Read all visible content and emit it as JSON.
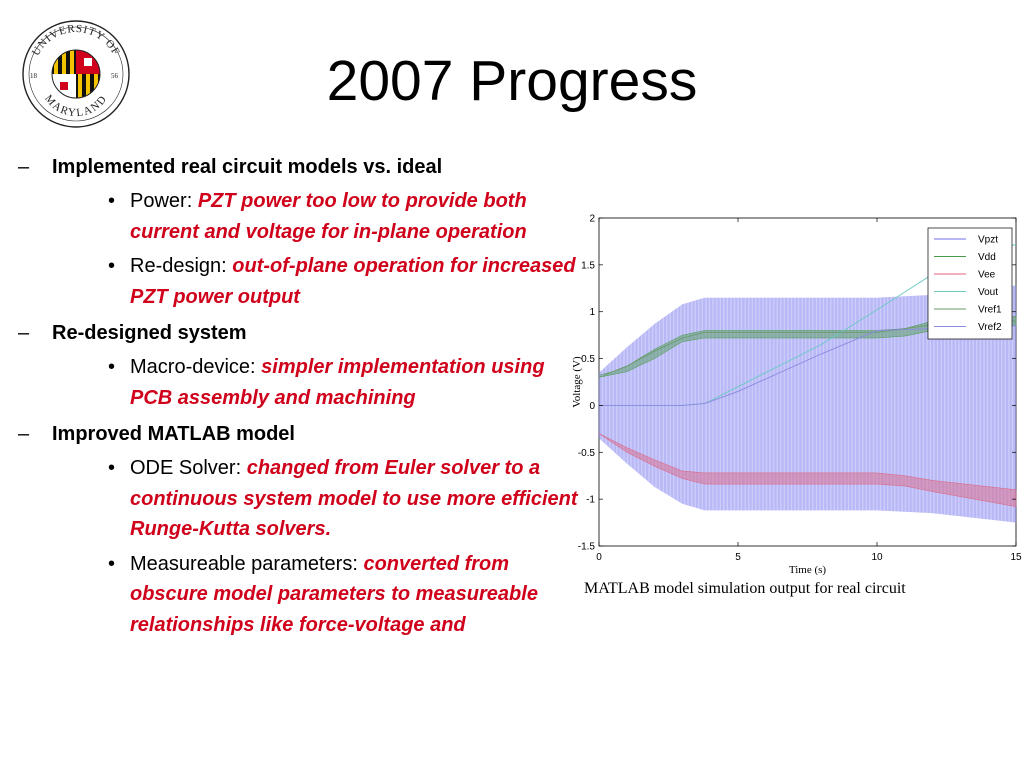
{
  "logo": {
    "top_text": "UNIVERSITY OF",
    "bottom_text": "MARYLAND",
    "year_left": "18",
    "year_right": "56"
  },
  "title": "2007 Progress",
  "bullets": [
    {
      "dash": "–",
      "text": "Implemented real circuit models vs. ideal",
      "subs": [
        {
          "bullet": "•",
          "label": "Power: ",
          "emph": "PZT power too low to provide both current and voltage for in-plane operation"
        },
        {
          "bullet": "•",
          "label": "Re-design: ",
          "emph": "out-of-plane operation for increased PZT power output"
        }
      ]
    },
    {
      "dash": "–",
      "text": "Re-designed system",
      "subs": [
        {
          "bullet": "•",
          "label": "Macro-device: ",
          "emph": "simpler implementation using PCB assembly and machining"
        }
      ]
    },
    {
      "dash": "–",
      "text": "Improved MATLAB model",
      "subs": [
        {
          "bullet": "•",
          "label": "ODE Solver: ",
          "emph": "changed from Euler solver to a continuous system model to use more efficient Runge-Kutta solvers."
        },
        {
          "bullet": "•",
          "label": "Measureable parameters: ",
          "emph": "converted from obscure model parameters to measureable relationships like force-voltage and"
        }
      ]
    }
  ],
  "chart_data": {
    "type": "line",
    "title": "",
    "xlabel": "Time (s)",
    "ylabel": "Voltage (V)",
    "xlim": [
      0,
      15
    ],
    "ylim": [
      -1.5,
      2
    ],
    "xticks": [
      "0",
      "5",
      "10",
      "15"
    ],
    "yticks": [
      "-1.5",
      "-1",
      "-0.5",
      "0",
      "0.5",
      "1",
      "1.5",
      "2"
    ],
    "legend_position": "top-right",
    "grid": false,
    "series": [
      {
        "name": "Vpzt",
        "color": "#6f6ff0",
        "style": "oscillating-envelope",
        "x": [
          0,
          1,
          2,
          3,
          3.8,
          5,
          8,
          10,
          12,
          15
        ],
        "upper": [
          0.35,
          0.62,
          0.87,
          1.08,
          1.15,
          1.15,
          1.15,
          1.15,
          1.18,
          1.28
        ],
        "lower": [
          -0.35,
          -0.62,
          -0.87,
          -1.05,
          -1.12,
          -1.12,
          -1.12,
          -1.12,
          -1.15,
          -1.25
        ]
      },
      {
        "name": "Vdd",
        "color": "#4a9a4a",
        "style": "band",
        "x": [
          0,
          1,
          2,
          3,
          3.8,
          5,
          8,
          10,
          11,
          12,
          15
        ],
        "upper": [
          0.3,
          0.42,
          0.6,
          0.75,
          0.8,
          0.8,
          0.8,
          0.8,
          0.82,
          0.9,
          0.95
        ],
        "lower": [
          0.3,
          0.36,
          0.5,
          0.68,
          0.72,
          0.72,
          0.72,
          0.72,
          0.74,
          0.8,
          0.85
        ]
      },
      {
        "name": "Vee",
        "color": "#e0607a",
        "style": "band",
        "x": [
          0,
          1,
          2,
          3,
          3.8,
          5,
          8,
          10,
          11,
          12,
          15
        ],
        "upper": [
          -0.3,
          -0.45,
          -0.58,
          -0.7,
          -0.72,
          -0.72,
          -0.72,
          -0.72,
          -0.75,
          -0.8,
          -0.9
        ],
        "lower": [
          -0.3,
          -0.5,
          -0.65,
          -0.78,
          -0.84,
          -0.84,
          -0.84,
          -0.84,
          -0.86,
          -0.92,
          -1.08
        ]
      },
      {
        "name": "Vout",
        "color": "#6ac8c0",
        "style": "line",
        "x": [
          0,
          3,
          3.8,
          5,
          8,
          10,
          12,
          15
        ],
        "y": [
          0,
          0,
          0.02,
          0.2,
          0.65,
          1.02,
          1.4,
          1.72
        ]
      },
      {
        "name": "Vref1",
        "color": "#6a9a6a",
        "style": "line",
        "x": [
          0,
          0.5,
          1,
          2,
          3,
          3.8,
          5,
          8,
          10,
          12,
          15
        ],
        "y": [
          0.32,
          0.36,
          0.42,
          0.58,
          0.72,
          0.78,
          0.78,
          0.78,
          0.78,
          0.86,
          0.9
        ]
      },
      {
        "name": "Vref2",
        "color": "#8a8ae0",
        "style": "line",
        "x": [
          0,
          0.5,
          1,
          2,
          3,
          3.8,
          5,
          8,
          10,
          12,
          15
        ],
        "y": [
          0,
          0,
          0,
          0,
          0,
          0.02,
          0.15,
          0.55,
          0.8,
          0.82,
          0.85
        ]
      }
    ]
  },
  "caption": "MATLAB model simulation output for real circuit"
}
